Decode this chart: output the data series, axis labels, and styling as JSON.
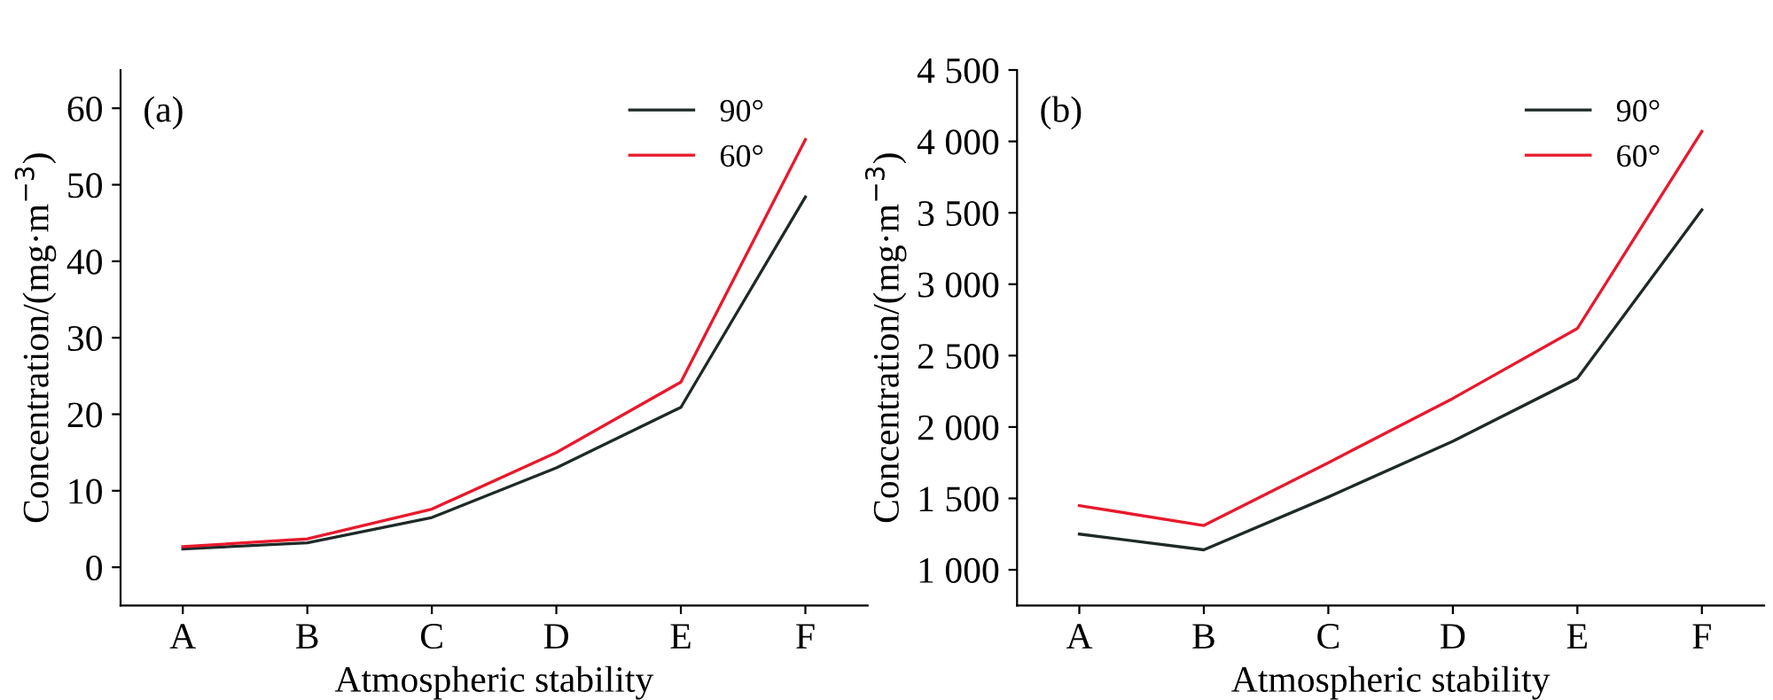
{
  "chart_data": [
    {
      "type": "line",
      "categories": [
        "A",
        "B",
        "C",
        "D",
        "E",
        "F"
      ],
      "xlabel": "Atmospheric stability",
      "ylabel": "Concentration/(mg·m$^{−3}$)",
      "annotations": [
        "(a)"
      ],
      "ylim": [
        -5,
        65
      ],
      "yticks": [
        0,
        10,
        20,
        30,
        40,
        50,
        60
      ],
      "legend": "top right",
      "grid": false,
      "series": [
        {
          "name": "90°",
          "color": "#1f2a28",
          "values": [
            2.4,
            3.2,
            6.5,
            13.0,
            20.9,
            48.4
          ]
        },
        {
          "name": "60°",
          "color": "#e8192c",
          "values": [
            2.7,
            3.7,
            7.6,
            15.0,
            24.2,
            55.9
          ]
        }
      ]
    },
    {
      "type": "line",
      "categories": [
        "A",
        "B",
        "C",
        "D",
        "E",
        "F"
      ],
      "xlabel": "Atmospheric stability",
      "ylabel": "Concentration/(mg·m$^{−3}$)",
      "annotations": [
        "(b)"
      ],
      "ylim": [
        750,
        4500
      ],
      "yticks": [
        {
          "value": 1000,
          "label": "1 000"
        },
        {
          "value": 1500,
          "label": "1 500"
        },
        {
          "value": 2000,
          "label": "2 000"
        },
        {
          "value": 2500,
          "label": "2 500"
        },
        {
          "value": 3000,
          "label": "3 000"
        },
        {
          "value": 3500,
          "label": "3 500"
        },
        {
          "value": 4000,
          "label": "4 000"
        },
        {
          "value": 4500,
          "label": "4 500"
        }
      ],
      "legend": "top right",
      "grid": false,
      "series": [
        {
          "name": "90°",
          "color": "#1f2a28",
          "values": [
            1250,
            1140,
            1510,
            1900,
            2340,
            3520
          ]
        },
        {
          "name": "60°",
          "color": "#e8192c",
          "values": [
            1450,
            1310,
            1750,
            2200,
            2690,
            4070
          ]
        }
      ]
    }
  ]
}
